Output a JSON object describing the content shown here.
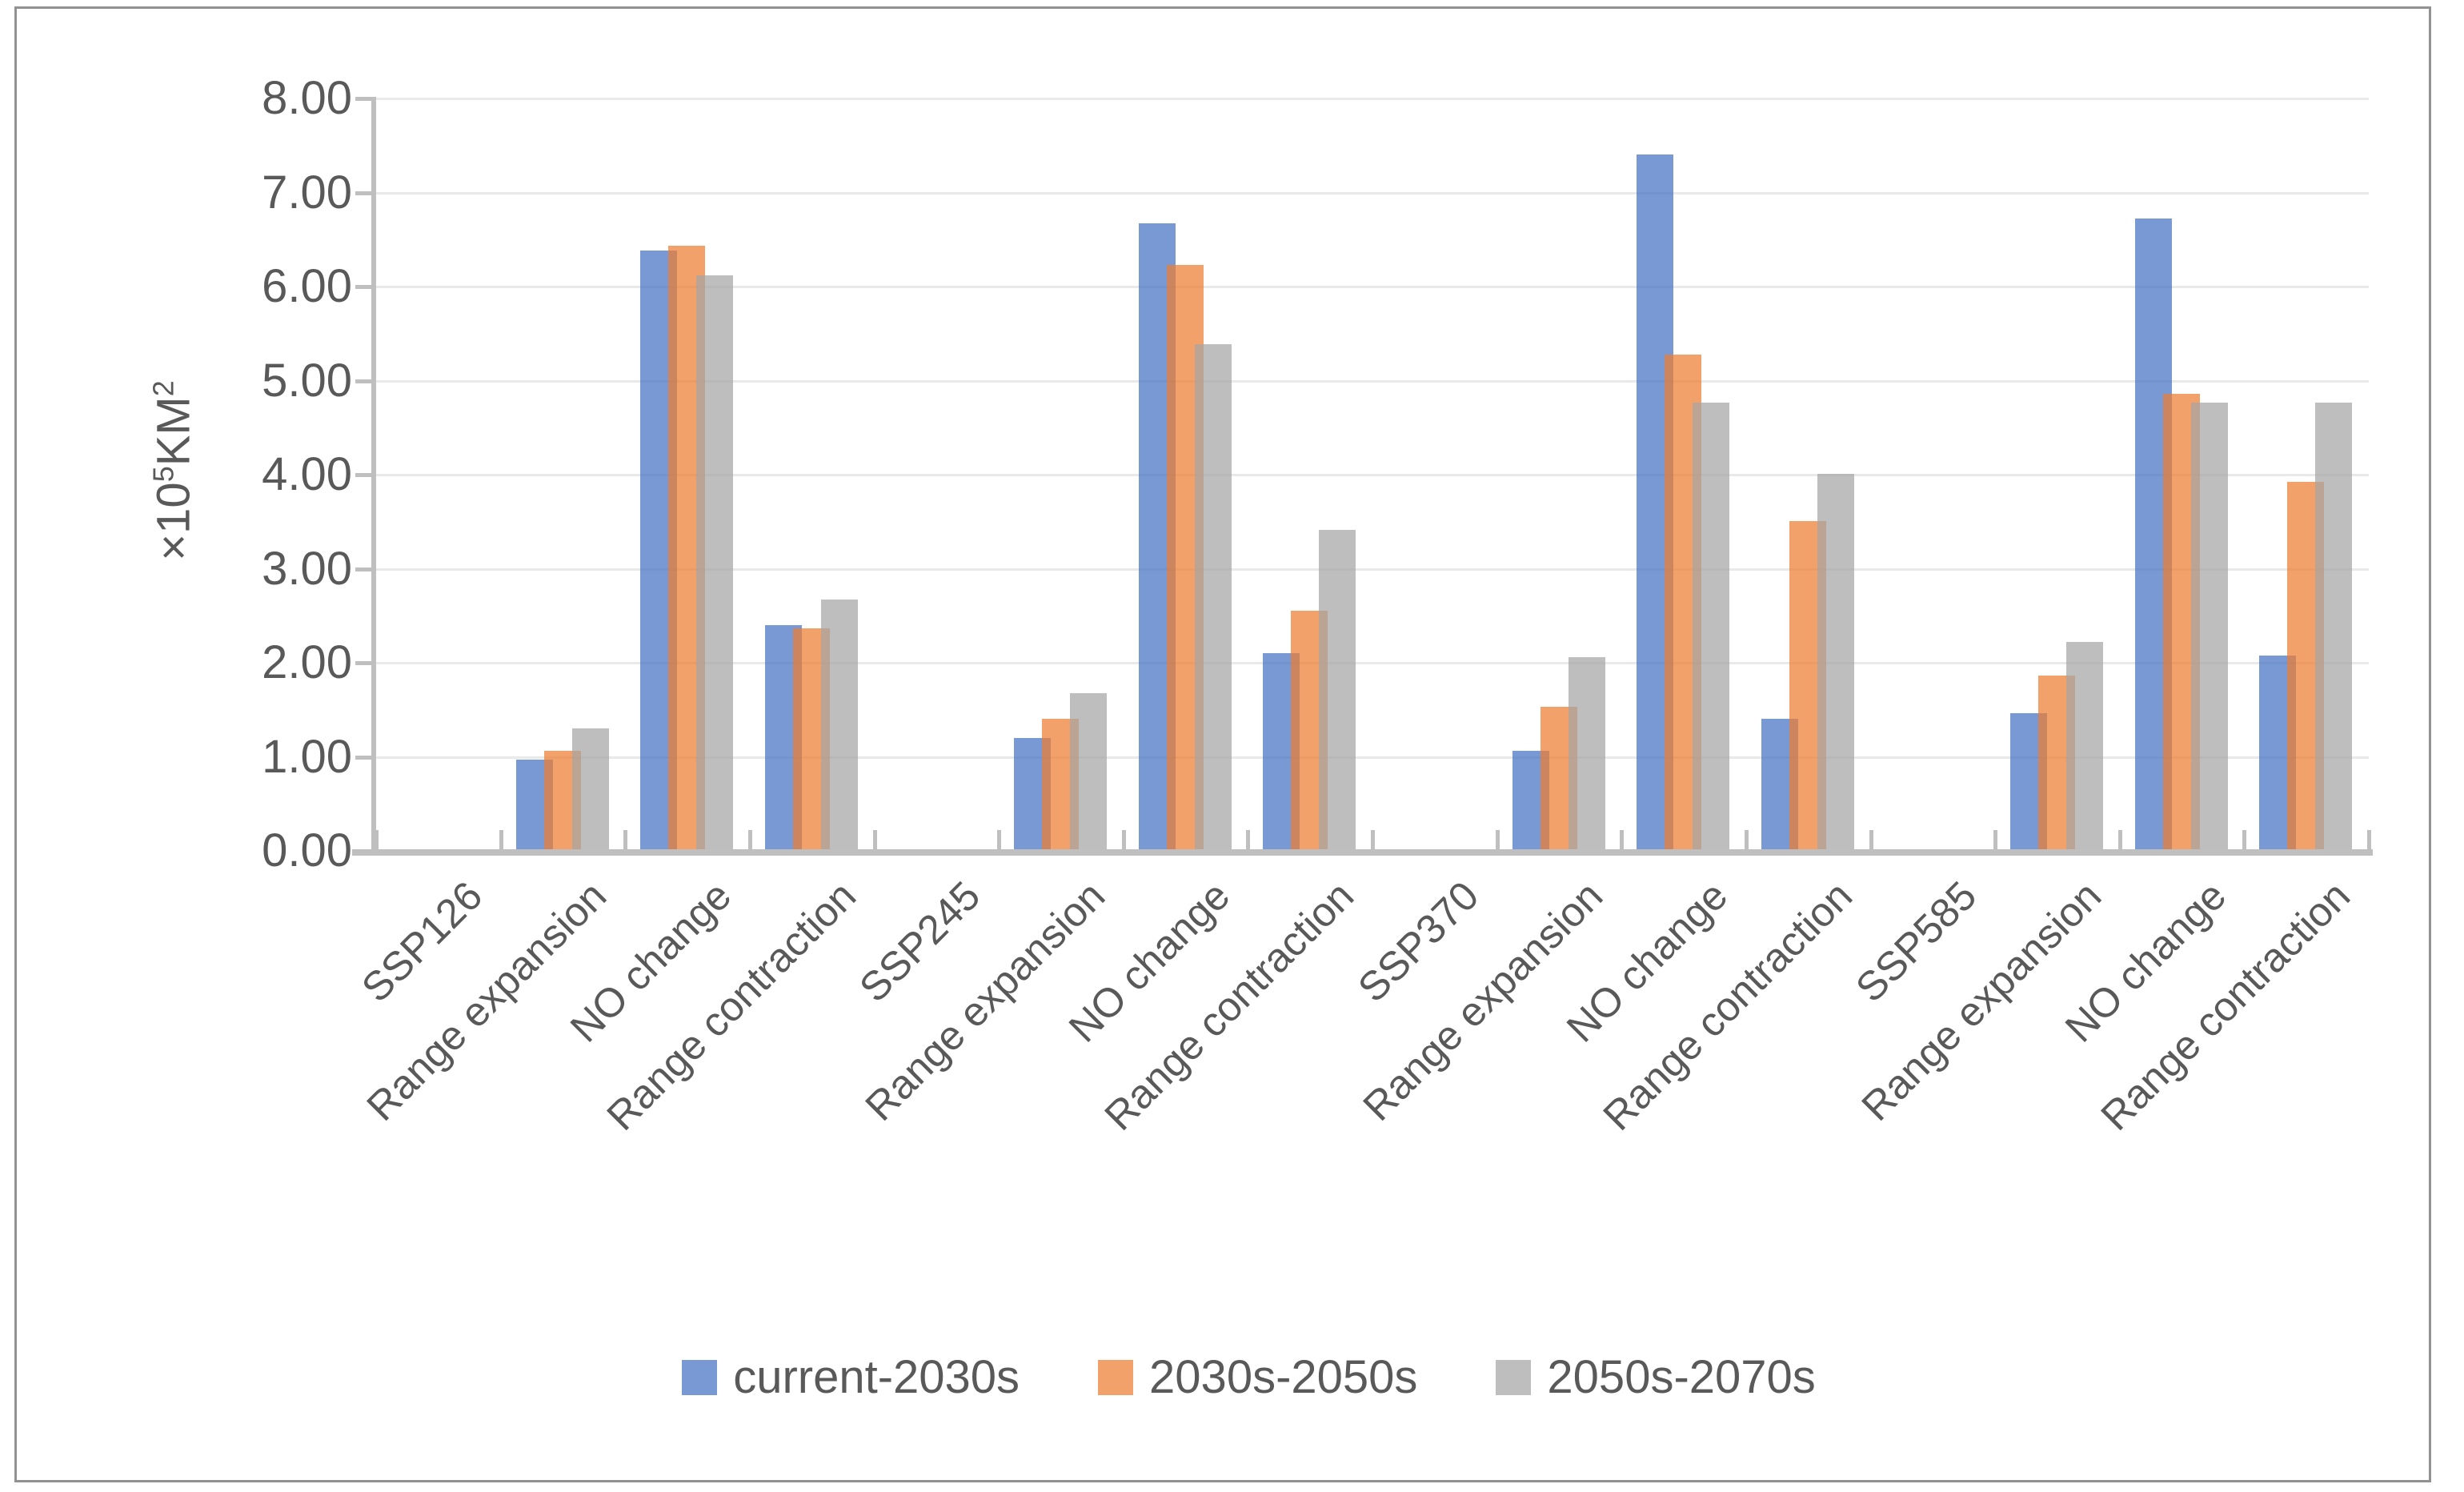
{
  "chart_data": {
    "type": "bar",
    "title": "",
    "xlabel": "",
    "ylabel": "×10⁵KM²",
    "ylabel_parts": {
      "prefix": "×10",
      "exp": "5",
      "unit": "KM",
      "unit_exp": "2"
    },
    "ylim": [
      0,
      8
    ],
    "ytick_step": 1,
    "ytick_labels": [
      "0.00",
      "1.00",
      "2.00",
      "3.00",
      "4.00",
      "5.00",
      "6.00",
      "7.00",
      "8.00"
    ],
    "grid": true,
    "legend_position": "bottom-center",
    "categories": [
      "SSP126",
      "Range expansion",
      "NO change",
      "Range contraction",
      "SSP245",
      "Range expansion",
      "NO change",
      "Range contraction",
      "SSP370",
      "Range expansion",
      "NO change",
      "Range contraction",
      "SSP585",
      "Range expansion",
      "NO change",
      "Range contraction"
    ],
    "series": [
      {
        "name": "current-2030s",
        "color": "rgba(68,114,196,0.72)",
        "values": [
          null,
          0.97,
          6.38,
          2.4,
          null,
          1.2,
          6.67,
          2.1,
          null,
          1.06,
          7.4,
          1.4,
          null,
          1.46,
          6.72,
          2.08
        ]
      },
      {
        "name": "2030s-2050s",
        "color": "rgba(237,125,49,0.72)",
        "values": [
          null,
          1.06,
          6.43,
          2.37,
          null,
          1.4,
          6.23,
          2.55,
          null,
          1.53,
          5.28,
          3.51,
          null,
          1.86,
          4.86,
          3.92
        ]
      },
      {
        "name": "2050s-2070s",
        "color": "rgba(165,165,165,0.72)",
        "values": [
          null,
          1.3,
          6.12,
          2.67,
          null,
          1.68,
          5.39,
          3.41,
          null,
          2.06,
          4.77,
          4.01,
          null,
          2.22,
          4.77,
          4.77
        ]
      }
    ]
  },
  "colors": {
    "axis_line": "#bfbfbf",
    "gridline": "#e9e9e9",
    "text": "#595959",
    "frame_border": "#929292",
    "background": "#ffffff"
  }
}
